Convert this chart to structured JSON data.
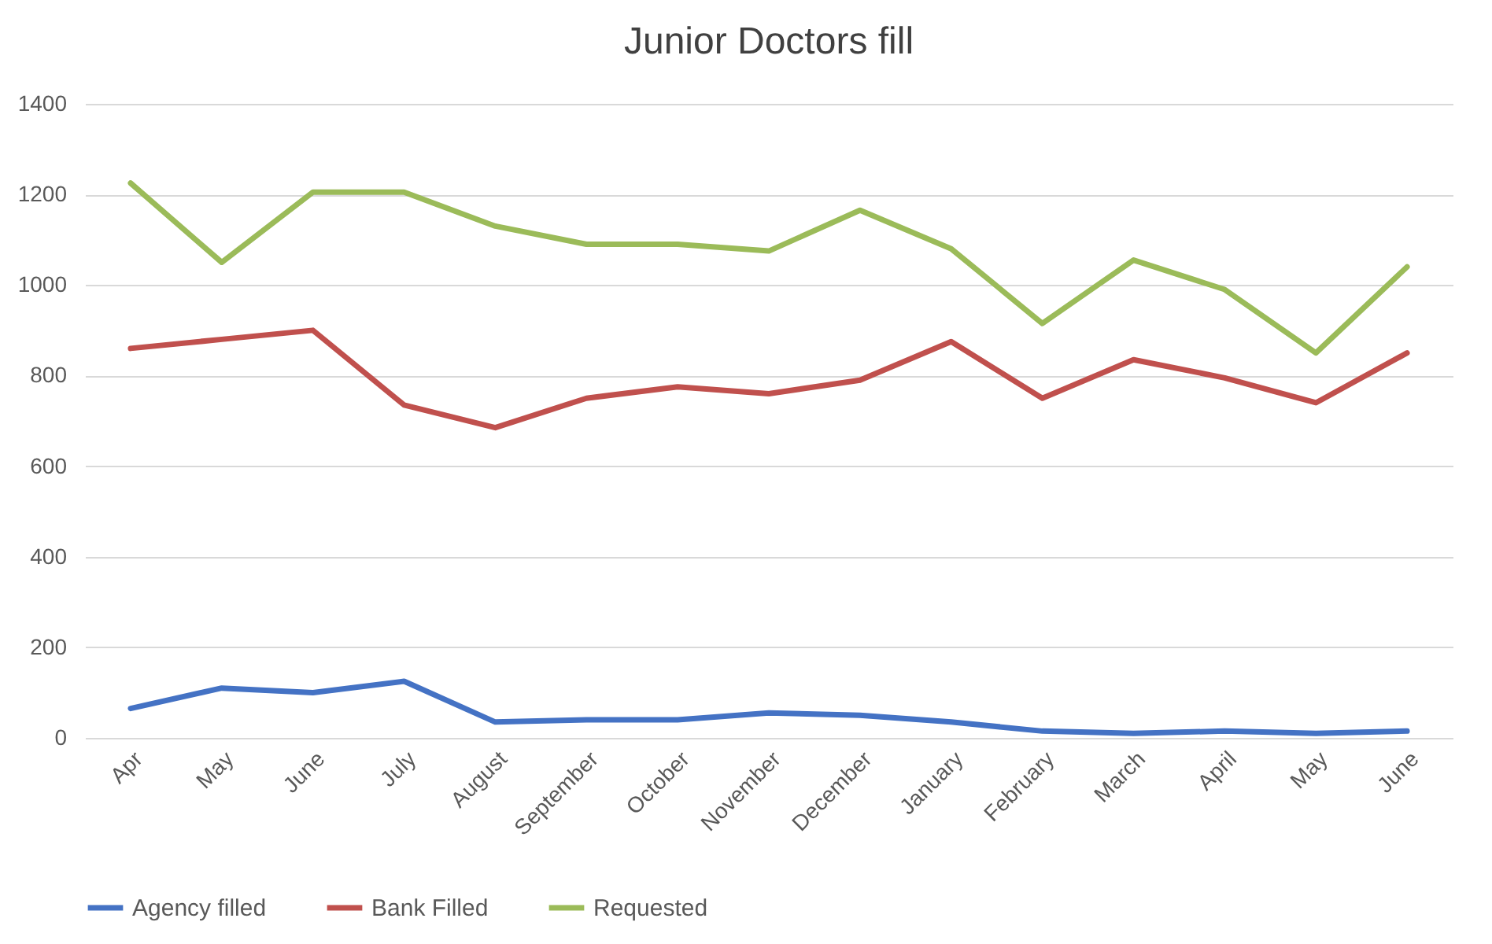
{
  "chart_data": {
    "type": "line",
    "title": "Junior Doctors fill",
    "categories": [
      "Apr",
      "May",
      "June",
      "July",
      "August",
      "September",
      "October",
      "November",
      "December",
      "January",
      "February",
      "March",
      "April",
      "May",
      "June"
    ],
    "series": [
      {
        "name": "Agency filled",
        "color": "#4472c4",
        "values": [
          65,
          110,
          100,
          125,
          35,
          40,
          40,
          55,
          50,
          35,
          15,
          10,
          15,
          10,
          15
        ]
      },
      {
        "name": "Bank Filled",
        "color": "#c0504d",
        "values": [
          860,
          880,
          900,
          735,
          685,
          750,
          775,
          760,
          790,
          875,
          750,
          835,
          795,
          740,
          850
        ]
      },
      {
        "name": "Requested",
        "color": "#9bbb59",
        "values": [
          1225,
          1050,
          1205,
          1205,
          1130,
          1090,
          1090,
          1075,
          1165,
          1080,
          915,
          1055,
          990,
          850,
          1040
        ]
      }
    ],
    "ylim": [
      0,
      1400
    ],
    "yticks": [
      0,
      200,
      400,
      600,
      800,
      1000,
      1200,
      1400
    ],
    "grid": "y",
    "legend": "bottom",
    "marker": "none",
    "line_style": "solid"
  }
}
